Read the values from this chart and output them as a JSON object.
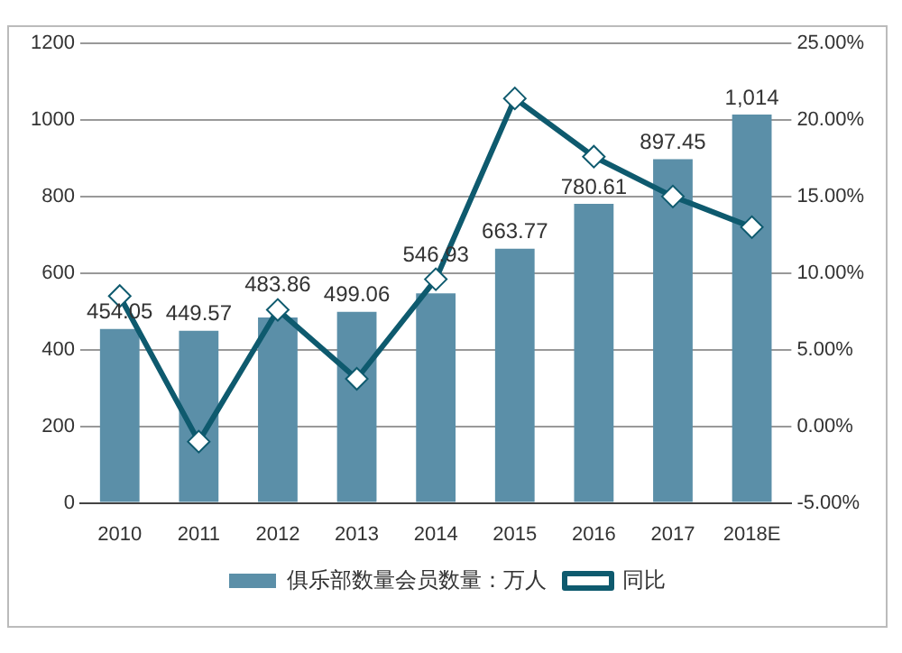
{
  "chart_data": {
    "type": "bar",
    "categories": [
      "2010",
      "2011",
      "2012",
      "2013",
      "2014",
      "2015",
      "2016",
      "2017",
      "2018E"
    ],
    "series": [
      {
        "name": "俱乐部数量会员数量：万人",
        "color": "#5b8fa8",
        "values": [
          454.05,
          449.57,
          483.86,
          499.06,
          546.93,
          663.77,
          780.61,
          897.45,
          1014
        ],
        "value_labels": [
          "454.05",
          "449.57",
          "483.86",
          "499.06",
          "546.93",
          "663.77",
          "780.61",
          "897.45",
          "1,014"
        ]
      },
      {
        "name": "同比",
        "type": "line",
        "axis": "y2",
        "color": "#0e5a6e",
        "marker": "diamond",
        "values": [
          8.5,
          -1,
          7.6,
          3.1,
          9.6,
          21.4,
          17.6,
          15,
          13
        ]
      }
    ],
    "ylim": [
      0,
      1200
    ],
    "yticks": [
      0,
      200,
      400,
      600,
      800,
      1000,
      1200
    ],
    "y2lim": [
      -5,
      25
    ],
    "y2ticks": [
      {
        "value": -5,
        "label": "-5.00%"
      },
      {
        "value": 0,
        "label": "0.00%"
      },
      {
        "value": 5,
        "label": "5.00%"
      },
      {
        "value": 10,
        "label": "10.00%"
      },
      {
        "value": 15,
        "label": "15.00%"
      },
      {
        "value": 20,
        "label": "20.00%"
      },
      {
        "value": 25,
        "label": "25.00%"
      }
    ],
    "grid": "y",
    "legend": "bottom"
  }
}
